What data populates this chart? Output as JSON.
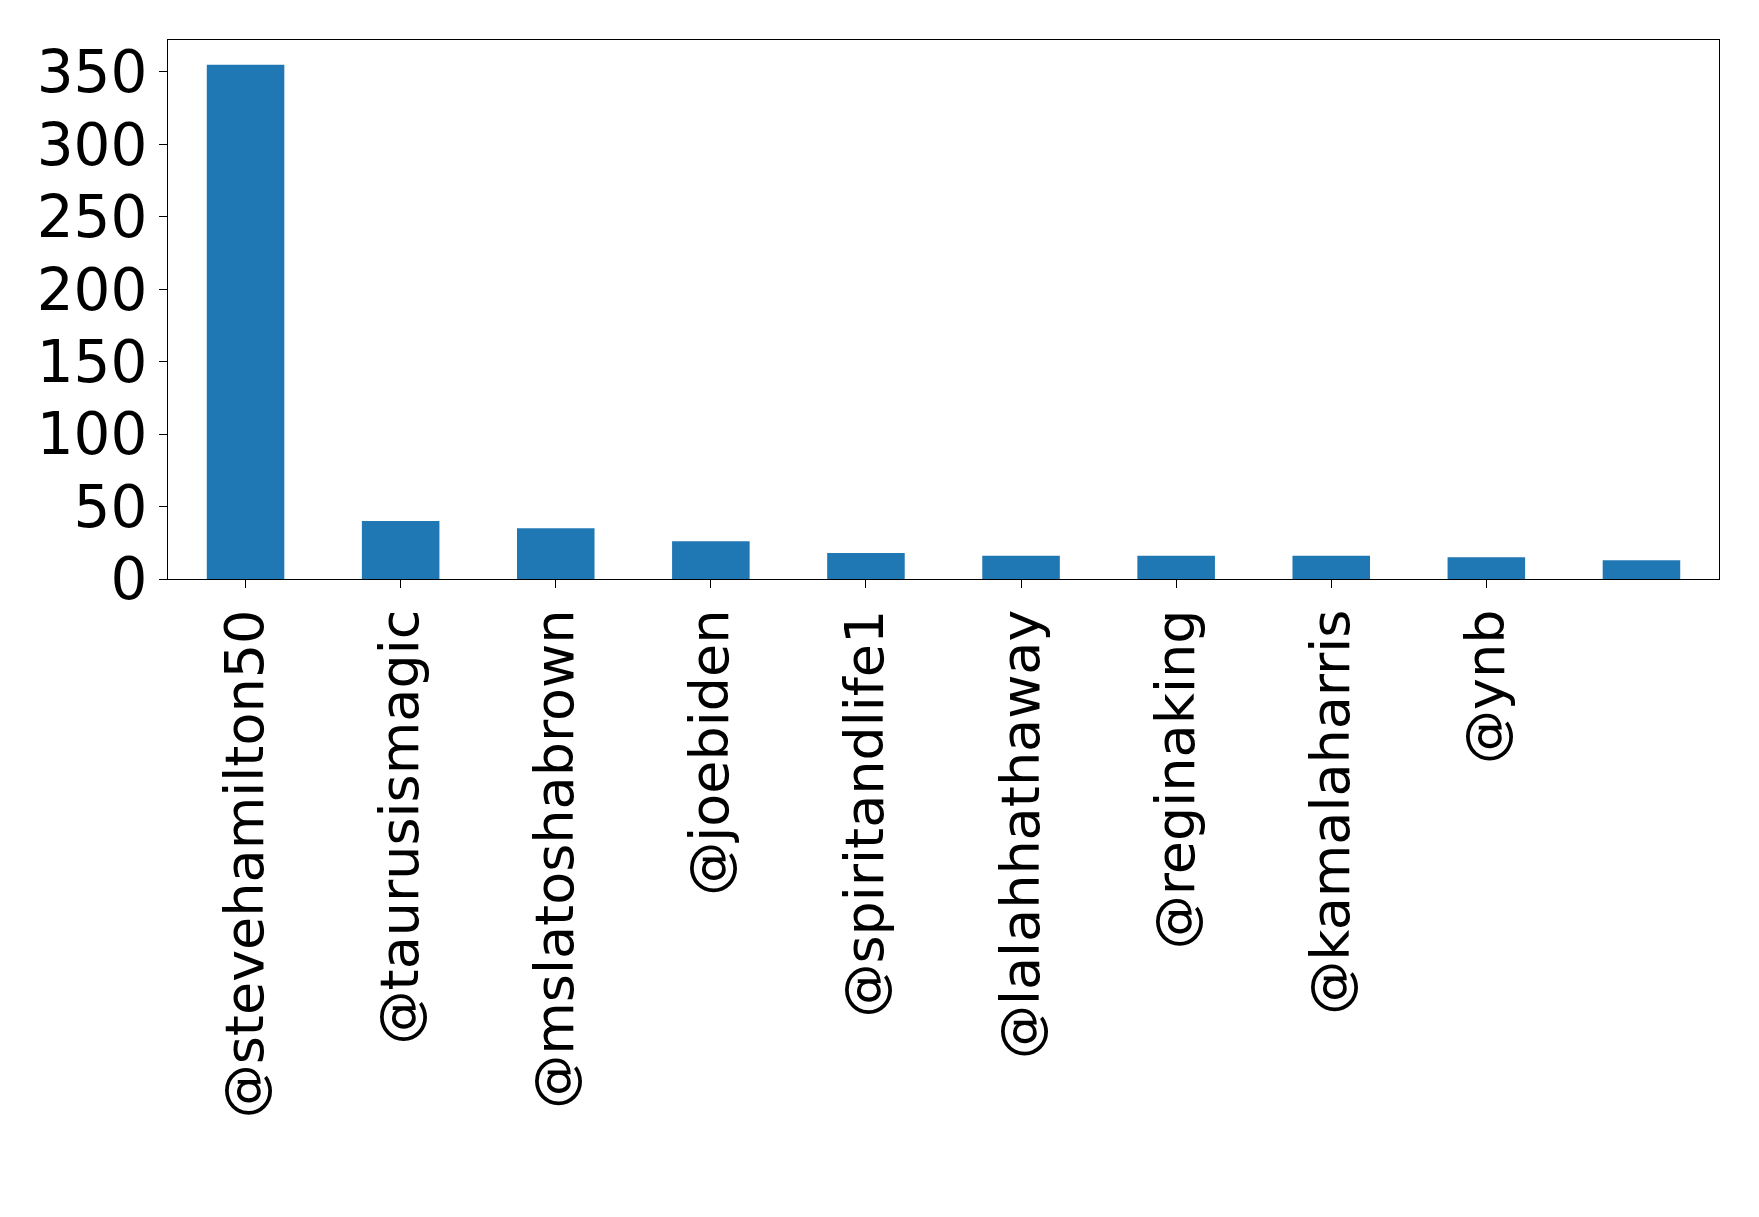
{
  "chart_data": {
    "type": "bar",
    "categories": [
      "@stevehamilton50",
      "@taurusismagic",
      "@mslatoshabrown",
      "@joebiden",
      "@spiritandlife1",
      "@lalahhathaway",
      "@reginaking",
      "@kamalaharris",
      "@ynb",
      null
    ],
    "values": [
      355,
      40,
      35,
      26,
      18,
      16,
      16,
      16,
      15,
      13
    ],
    "color": "#1f77b4",
    "ylim": [
      0,
      372
    ],
    "yticks": [
      0,
      50,
      100,
      150,
      200,
      250,
      300,
      350
    ],
    "legend": false
  }
}
